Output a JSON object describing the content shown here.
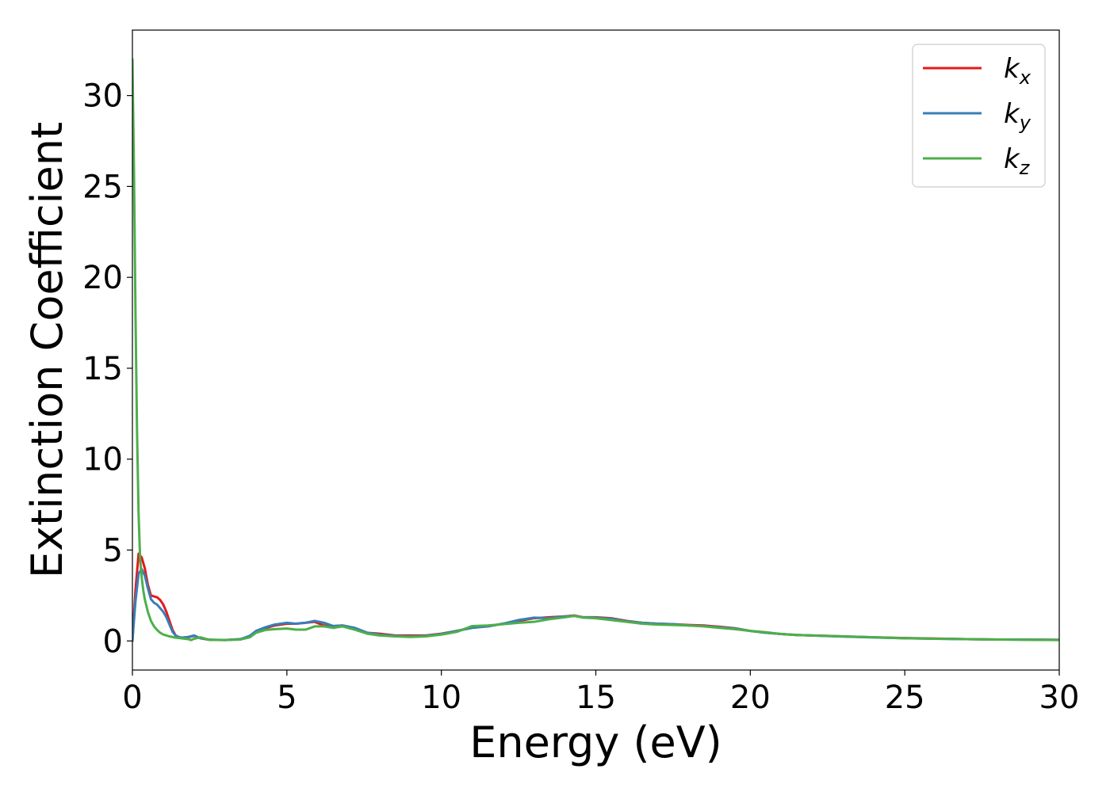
{
  "chart_data": {
    "type": "line",
    "title": "",
    "xlabel": "Energy (eV)",
    "ylabel": "Extinction Coefficient",
    "xlim": [
      0,
      30
    ],
    "ylim": [
      -1.6,
      33.6
    ],
    "xticks": [
      0,
      5,
      10,
      15,
      20,
      25,
      30
    ],
    "yticks": [
      0,
      5,
      10,
      15,
      20,
      25,
      30
    ],
    "grid": false,
    "legend_position": "top-right",
    "series": [
      {
        "name": "k",
        "subscript": "x",
        "color": "#e41a1c",
        "x": [
          0,
          0.1,
          0.2,
          0.3,
          0.4,
          0.5,
          0.6,
          0.7,
          0.8,
          0.9,
          1.0,
          1.1,
          1.2,
          1.3,
          1.4,
          1.5,
          1.6,
          1.8,
          2.0,
          2.2,
          2.5,
          3.0,
          3.5,
          3.8,
          4.0,
          4.3,
          4.6,
          5.0,
          5.3,
          5.6,
          5.9,
          6.2,
          6.5,
          6.8,
          7.2,
          7.6,
          8.0,
          8.5,
          9.0,
          9.5,
          10.0,
          10.5,
          11.0,
          11.5,
          12.0,
          12.5,
          13.0,
          13.5,
          14.0,
          14.3,
          14.6,
          15.0,
          15.5,
          16.0,
          16.5,
          17.0,
          17.5,
          18.0,
          18.5,
          19.0,
          19.5,
          20.0,
          20.5,
          21.0,
          21.5,
          22.0,
          22.5,
          23.0,
          24.0,
          25.0,
          26.0,
          27.0,
          28.0,
          29.0,
          30.0
        ],
        "y": [
          0.0,
          2.8,
          4.8,
          4.6,
          4.0,
          3.1,
          2.5,
          2.45,
          2.4,
          2.25,
          2.0,
          1.6,
          1.1,
          0.6,
          0.3,
          0.2,
          0.18,
          0.2,
          0.28,
          0.15,
          0.06,
          0.05,
          0.1,
          0.25,
          0.5,
          0.7,
          0.85,
          0.95,
          0.95,
          1.0,
          1.05,
          0.85,
          0.82,
          0.85,
          0.7,
          0.45,
          0.4,
          0.3,
          0.3,
          0.3,
          0.4,
          0.55,
          0.75,
          0.8,
          0.95,
          1.1,
          1.25,
          1.3,
          1.35,
          1.4,
          1.3,
          1.3,
          1.25,
          1.1,
          1.0,
          0.95,
          0.92,
          0.88,
          0.85,
          0.78,
          0.7,
          0.55,
          0.45,
          0.38,
          0.33,
          0.3,
          0.28,
          0.25,
          0.2,
          0.16,
          0.13,
          0.1,
          0.08,
          0.07,
          0.06
        ]
      },
      {
        "name": "k",
        "subscript": "y",
        "color": "#377eb8",
        "x": [
          0,
          0.1,
          0.2,
          0.3,
          0.4,
          0.5,
          0.6,
          0.7,
          0.8,
          0.9,
          1.0,
          1.1,
          1.2,
          1.3,
          1.4,
          1.5,
          1.6,
          1.8,
          2.0,
          2.2,
          2.5,
          3.0,
          3.5,
          3.8,
          4.0,
          4.3,
          4.6,
          5.0,
          5.3,
          5.6,
          5.9,
          6.2,
          6.5,
          6.8,
          7.2,
          7.6,
          8.0,
          8.5,
          9.0,
          9.5,
          10.0,
          10.5,
          11.0,
          11.5,
          12.0,
          12.5,
          13.0,
          13.5,
          14.0,
          14.3,
          14.6,
          15.0,
          15.5,
          16.0,
          16.5,
          17.0,
          17.5,
          18.0,
          18.5,
          19.0,
          19.5,
          20.0,
          20.5,
          21.0,
          21.5,
          22.0,
          22.5,
          23.0,
          24.0,
          25.0,
          26.0,
          27.0,
          28.0,
          29.0,
          30.0
        ],
        "y": [
          0.0,
          2.2,
          3.7,
          3.95,
          3.6,
          2.9,
          2.3,
          2.1,
          2.0,
          1.8,
          1.6,
          1.3,
          0.9,
          0.5,
          0.3,
          0.22,
          0.18,
          0.22,
          0.3,
          0.15,
          0.07,
          0.05,
          0.1,
          0.28,
          0.55,
          0.75,
          0.9,
          1.0,
          0.95,
          1.0,
          1.1,
          1.0,
          0.82,
          0.85,
          0.72,
          0.45,
          0.35,
          0.28,
          0.25,
          0.28,
          0.38,
          0.55,
          0.72,
          0.8,
          0.95,
          1.15,
          1.28,
          1.25,
          1.35,
          1.38,
          1.3,
          1.28,
          1.22,
          1.08,
          1.0,
          0.95,
          0.92,
          0.85,
          0.82,
          0.75,
          0.68,
          0.55,
          0.45,
          0.38,
          0.33,
          0.3,
          0.27,
          0.24,
          0.19,
          0.15,
          0.12,
          0.1,
          0.08,
          0.07,
          0.06
        ]
      },
      {
        "name": "k",
        "subscript": "z",
        "color": "#4daf4a",
        "x": [
          0,
          0.05,
          0.1,
          0.15,
          0.2,
          0.25,
          0.3,
          0.35,
          0.4,
          0.5,
          0.6,
          0.7,
          0.8,
          0.9,
          1.0,
          1.2,
          1.4,
          1.6,
          1.8,
          1.9,
          2.0,
          2.2,
          2.5,
          3.0,
          3.5,
          3.8,
          4.0,
          4.3,
          4.6,
          5.0,
          5.3,
          5.6,
          5.9,
          6.2,
          6.5,
          6.8,
          7.2,
          7.6,
          8.0,
          8.5,
          9.0,
          9.5,
          10.0,
          10.5,
          11.0,
          11.5,
          12.0,
          12.5,
          13.0,
          13.5,
          14.0,
          14.3,
          14.6,
          15.0,
          15.5,
          16.0,
          16.5,
          17.0,
          17.5,
          18.0,
          18.5,
          19.0,
          19.5,
          20.0,
          20.5,
          21.0,
          21.5,
          22.0,
          22.5,
          23.0,
          24.0,
          25.0,
          26.0,
          27.0,
          28.0,
          29.0,
          30.0
        ],
        "y": [
          32.0,
          26.0,
          18.0,
          11.5,
          7.0,
          4.5,
          3.5,
          2.8,
          2.3,
          1.6,
          1.1,
          0.8,
          0.6,
          0.45,
          0.35,
          0.25,
          0.18,
          0.14,
          0.1,
          0.05,
          0.12,
          0.2,
          0.06,
          0.05,
          0.08,
          0.2,
          0.45,
          0.6,
          0.65,
          0.68,
          0.62,
          0.62,
          0.8,
          0.8,
          0.72,
          0.8,
          0.62,
          0.4,
          0.3,
          0.25,
          0.22,
          0.25,
          0.35,
          0.5,
          0.82,
          0.85,
          0.92,
          1.0,
          1.05,
          1.2,
          1.3,
          1.38,
          1.28,
          1.25,
          1.15,
          1.05,
          0.95,
          0.9,
          0.88,
          0.85,
          0.8,
          0.72,
          0.65,
          0.55,
          0.48,
          0.38,
          0.33,
          0.3,
          0.28,
          0.25,
          0.2,
          0.15,
          0.12,
          0.1,
          0.08,
          0.06,
          0.05
        ]
      }
    ]
  }
}
